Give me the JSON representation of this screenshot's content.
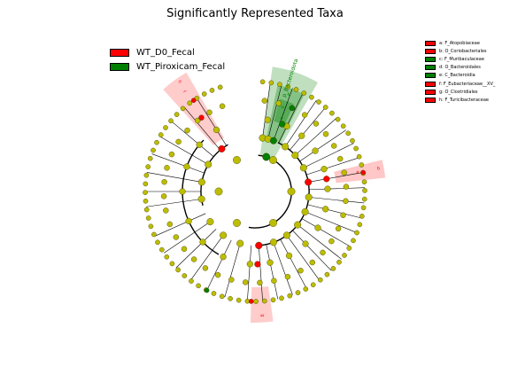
{
  "title": "Significantly Represented Taxa",
  "legend_groups": [
    {
      "label": "WT_D0_Fecal",
      "color": "#ff0000"
    },
    {
      "label": "WT_Piroxicam_Fecal",
      "color": "#008000"
    }
  ],
  "colors": {
    "node_default": "#bdbd00",
    "node_stroke": "#5a5a00",
    "clade_red_fill": "#ff0000",
    "clade_green_fill": "#008000"
  },
  "chart_data": {
    "type": "cladogram",
    "title": "Significantly Represented Taxa",
    "groups": [
      "WT_D0_Fecal",
      "WT_Piroxicam_Fecal"
    ],
    "taxa": [
      {
        "letter": "a",
        "name": "F_Atopobiaceae",
        "group": "WT_D0_Fecal",
        "color": "#ff0000"
      },
      {
        "letter": "b",
        "name": "O_Coriobacteriales",
        "group": "WT_D0_Fecal",
        "color": "#ff0000"
      },
      {
        "letter": "c",
        "name": "F_Muribaculaceae",
        "group": "WT_Piroxicam_Fecal",
        "color": "#008000"
      },
      {
        "letter": "d",
        "name": "O_Bacteroidales",
        "group": "WT_Piroxicam_Fecal",
        "color": "#008000"
      },
      {
        "letter": "e",
        "name": "C_Bacteroidia",
        "group": "WT_Piroxicam_Fecal",
        "color": "#008000"
      },
      {
        "letter": "f",
        "name": "F_Eubacteriaceae__XV_",
        "group": "WT_D0_Fecal",
        "color": "#ff0000"
      },
      {
        "letter": "g",
        "name": "O_Clostridiales",
        "group": "WT_D0_Fecal",
        "color": "#ff0000"
      },
      {
        "letter": "h",
        "name": "F_Turicibacteraceae",
        "group": "WT_D0_Fecal",
        "color": "#ff0000"
      }
    ],
    "highlight_labels": [
      {
        "text": "p_Bacteroidota",
        "color": "#008000"
      },
      {
        "text": "e",
        "color": "#008000"
      },
      {
        "text": "d",
        "color": "#008000"
      },
      {
        "text": "c",
        "color": "#008000"
      },
      {
        "text": "a",
        "color": "#ff0000"
      },
      {
        "text": "b",
        "color": "#ff0000"
      },
      {
        "text": "g",
        "color": "#ff0000"
      },
      {
        "text": "f",
        "color": "#ff0000"
      },
      {
        "text": "h",
        "color": "#ff0000"
      }
    ]
  }
}
